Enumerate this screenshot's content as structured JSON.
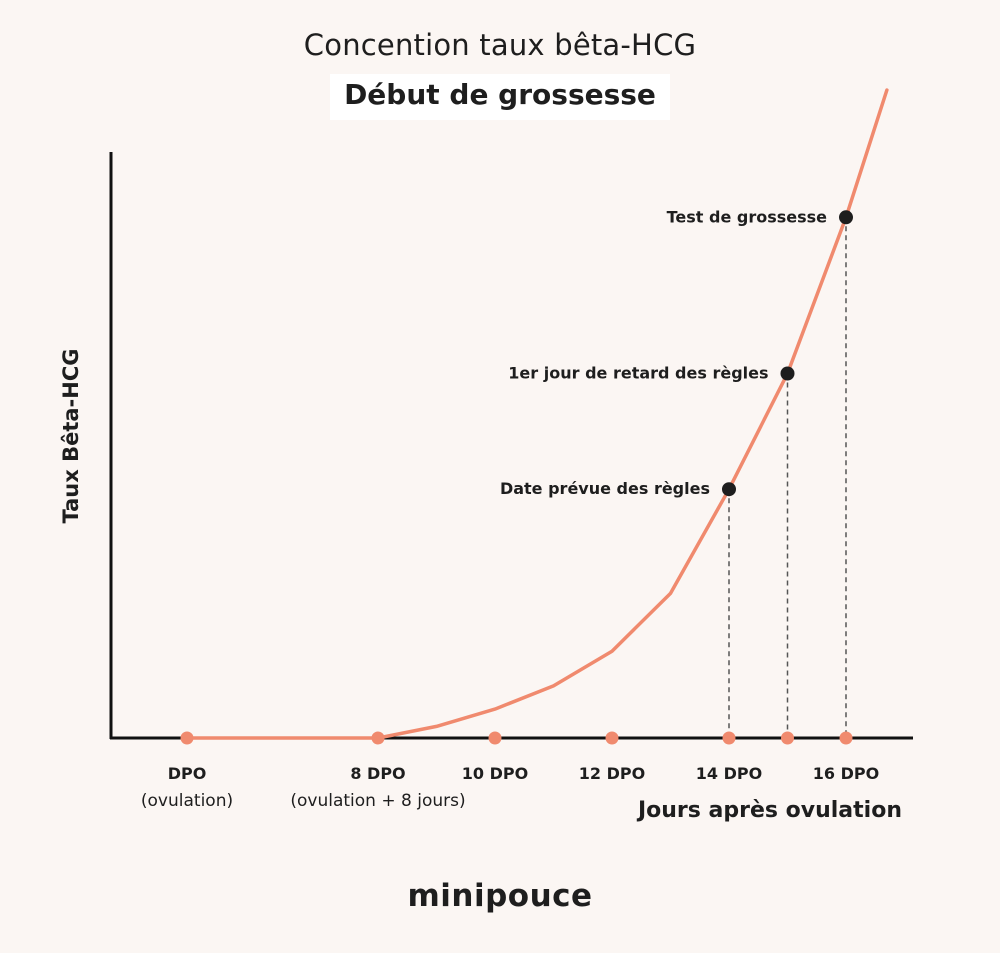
{
  "chart_data": {
    "type": "line",
    "title": "Concention taux bêta-HCG",
    "subtitle": "Début de grossesse",
    "xlabel": "Jours après ovulation",
    "ylabel": "Taux Bêta-HCG",
    "x": [
      8,
      9,
      10,
      11,
      12,
      13,
      14,
      15,
      16,
      16.7
    ],
    "y": [
      0,
      2,
      5,
      9,
      15,
      25,
      43,
      63,
      90,
      112
    ],
    "ylim": [
      0,
      112
    ],
    "grid": false,
    "line_color": "#f08a6e",
    "point_color": "#f08a6e",
    "annotation_color": "#1e1e1e",
    "ticks": [
      {
        "x": 0,
        "label": "DPO",
        "sublabel": "(ovulation)"
      },
      {
        "x": 8,
        "label": "8 DPO",
        "sublabel": "(ovulation + 8 jours)"
      },
      {
        "x": 10,
        "label": "10 DPO",
        "sublabel": ""
      },
      {
        "x": 12,
        "label": "12 DPO",
        "sublabel": ""
      },
      {
        "x": 14,
        "label": "14 DPO",
        "sublabel": ""
      },
      {
        "x": 15,
        "label": "",
        "sublabel": ""
      },
      {
        "x": 16,
        "label": "16 DPO",
        "sublabel": ""
      }
    ],
    "annotations": [
      {
        "x": 14,
        "y": 43,
        "label": "Date prévue des règles"
      },
      {
        "x": 15,
        "y": 63,
        "label": "1er jour de retard des règles"
      },
      {
        "x": 16,
        "y": 90,
        "label": "Test  de grossesse"
      }
    ]
  },
  "brand": {
    "logo_text": "minipouce"
  }
}
